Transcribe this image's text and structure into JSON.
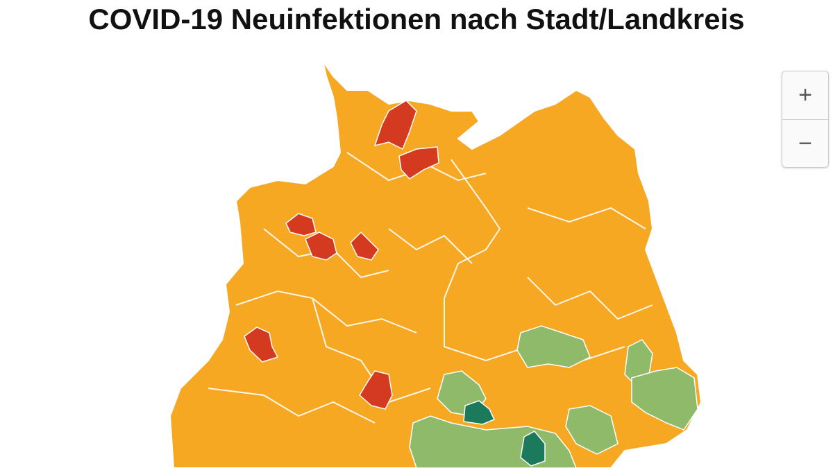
{
  "header": {
    "title": "COVID-19 Neuinfektionen nach Stadt/Landkreis"
  },
  "zoom_controls": {
    "zoom_in": "+",
    "zoom_out": "−"
  }
}
